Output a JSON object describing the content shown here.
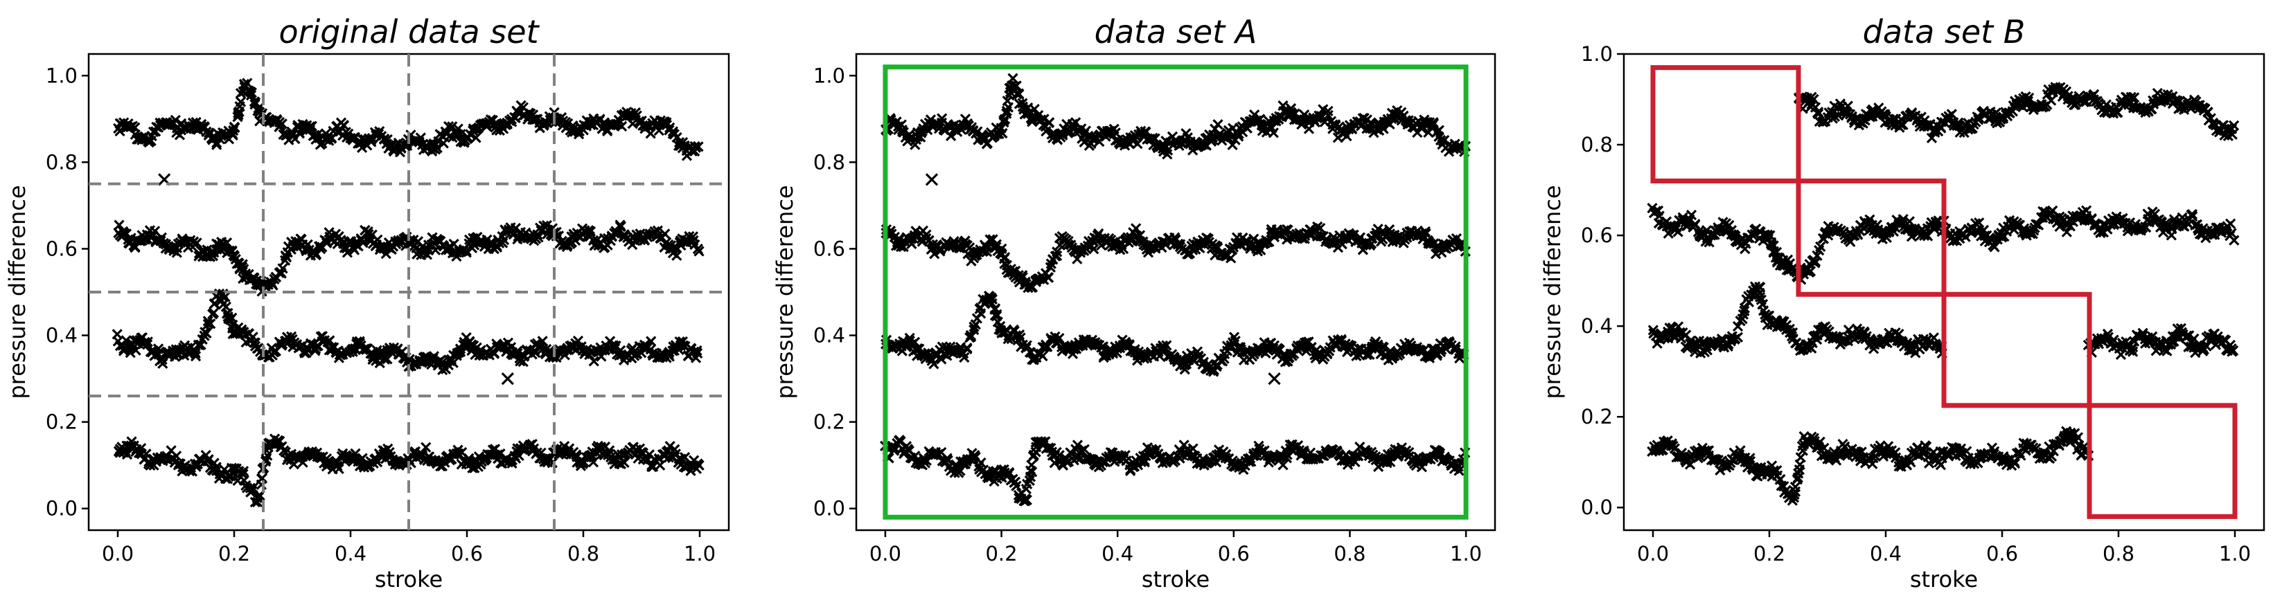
{
  "chart_data": [
    {
      "type": "scatter",
      "title": "original data set",
      "xlabel": "stroke",
      "ylabel": "pressure difference",
      "xlim": [
        -0.05,
        1.05
      ],
      "ylim": [
        -0.05,
        1.05
      ],
      "xticks": [
        "0.0",
        "0.2",
        "0.4",
        "0.6",
        "0.8",
        "1.0"
      ],
      "yticks": [
        "0.0",
        "0.2",
        "0.4",
        "0.6",
        "0.8",
        "1.0"
      ],
      "marker": "x",
      "grid_lines": {
        "vertical": [
          0.25,
          0.5,
          0.75
        ],
        "horizontal": [
          0.26,
          0.5,
          0.75
        ],
        "style": "dashed",
        "color": "#808080"
      },
      "series": [
        {
          "x": [
            0.0,
            0.05,
            0.1,
            0.15,
            0.2,
            0.22,
            0.25,
            0.3,
            0.4,
            0.5,
            0.55,
            0.6,
            0.7,
            0.8,
            0.9,
            0.95,
            1.0
          ],
          "y": [
            0.88,
            0.86,
            0.89,
            0.87,
            0.86,
            0.99,
            0.9,
            0.87,
            0.86,
            0.84,
            0.85,
            0.87,
            0.91,
            0.88,
            0.9,
            0.87,
            0.82
          ]
        },
        {
          "x": [
            0.0,
            0.05,
            0.1,
            0.15,
            0.2,
            0.22,
            0.25,
            0.3,
            0.4,
            0.5,
            0.6,
            0.7,
            0.8,
            0.9,
            1.0
          ],
          "y": [
            0.63,
            0.62,
            0.61,
            0.6,
            0.59,
            0.55,
            0.5,
            0.6,
            0.62,
            0.61,
            0.6,
            0.64,
            0.62,
            0.63,
            0.6
          ]
        },
        {
          "x": [
            0.0,
            0.05,
            0.1,
            0.14,
            0.18,
            0.2,
            0.25,
            0.3,
            0.4,
            0.5,
            0.55,
            0.6,
            0.7,
            0.8,
            0.9,
            1.0
          ],
          "y": [
            0.39,
            0.37,
            0.35,
            0.38,
            0.49,
            0.42,
            0.36,
            0.38,
            0.37,
            0.35,
            0.33,
            0.37,
            0.36,
            0.37,
            0.36,
            0.37
          ]
        },
        {
          "x": [
            0.0,
            0.05,
            0.1,
            0.15,
            0.2,
            0.24,
            0.26,
            0.3,
            0.4,
            0.5,
            0.6,
            0.7,
            0.8,
            0.9,
            1.0
          ],
          "y": [
            0.14,
            0.12,
            0.11,
            0.1,
            0.08,
            0.03,
            0.15,
            0.12,
            0.11,
            0.12,
            0.11,
            0.13,
            0.12,
            0.12,
            0.11
          ]
        }
      ],
      "outliers": [
        {
          "x": 0.08,
          "y": 0.76
        },
        {
          "x": 0.67,
          "y": 0.3
        }
      ]
    },
    {
      "type": "scatter",
      "title": "data set A",
      "xlabel": "stroke",
      "ylabel": "pressure difference",
      "xlim": [
        -0.05,
        1.05
      ],
      "ylim": [
        -0.05,
        1.05
      ],
      "xticks": [
        "0.0",
        "0.2",
        "0.4",
        "0.6",
        "0.8",
        "1.0"
      ],
      "yticks": [
        "0.0",
        "0.2",
        "0.4",
        "0.6",
        "0.8",
        "1.0"
      ],
      "marker": "x",
      "boxes": [
        {
          "x0": 0.0,
          "x1": 1.0,
          "y0": -0.02,
          "y1": 1.02,
          "color": "#1db32d"
        }
      ],
      "series": [
        {
          "x": [
            0.0,
            0.05,
            0.1,
            0.15,
            0.2,
            0.22,
            0.25,
            0.3,
            0.4,
            0.5,
            0.55,
            0.6,
            0.7,
            0.8,
            0.9,
            0.95,
            1.0
          ],
          "y": [
            0.88,
            0.86,
            0.89,
            0.87,
            0.86,
            0.99,
            0.9,
            0.87,
            0.86,
            0.84,
            0.85,
            0.87,
            0.91,
            0.88,
            0.9,
            0.87,
            0.82
          ]
        },
        {
          "x": [
            0.0,
            0.05,
            0.1,
            0.15,
            0.2,
            0.22,
            0.25,
            0.3,
            0.4,
            0.5,
            0.6,
            0.7,
            0.8,
            0.9,
            1.0
          ],
          "y": [
            0.63,
            0.62,
            0.61,
            0.6,
            0.59,
            0.55,
            0.5,
            0.6,
            0.62,
            0.61,
            0.6,
            0.64,
            0.62,
            0.63,
            0.6
          ]
        },
        {
          "x": [
            0.0,
            0.05,
            0.1,
            0.14,
            0.18,
            0.2,
            0.25,
            0.3,
            0.4,
            0.5,
            0.55,
            0.6,
            0.7,
            0.8,
            0.9,
            1.0
          ],
          "y": [
            0.39,
            0.37,
            0.35,
            0.38,
            0.49,
            0.42,
            0.36,
            0.38,
            0.37,
            0.35,
            0.33,
            0.37,
            0.36,
            0.37,
            0.36,
            0.37
          ]
        },
        {
          "x": [
            0.0,
            0.05,
            0.1,
            0.15,
            0.2,
            0.24,
            0.26,
            0.3,
            0.4,
            0.5,
            0.6,
            0.7,
            0.8,
            0.9,
            1.0
          ],
          "y": [
            0.14,
            0.12,
            0.11,
            0.1,
            0.08,
            0.03,
            0.15,
            0.12,
            0.11,
            0.12,
            0.11,
            0.13,
            0.12,
            0.12,
            0.11
          ]
        }
      ],
      "outliers": [
        {
          "x": 0.08,
          "y": 0.76
        },
        {
          "x": 0.67,
          "y": 0.3
        }
      ]
    },
    {
      "type": "scatter",
      "title": "data set B",
      "xlabel": "stroke",
      "ylabel": "pressure difference",
      "xlim": [
        -0.05,
        1.05
      ],
      "ylim": [
        -0.05,
        1.0
      ],
      "xticks": [
        "0.0",
        "0.2",
        "0.4",
        "0.6",
        "0.8",
        "1.0"
      ],
      "yticks": [
        "0.0",
        "0.2",
        "0.4",
        "0.6",
        "0.8",
        "1.0"
      ],
      "marker": "x",
      "boxes": [
        {
          "x0": 0.0,
          "x1": 0.25,
          "y0": 0.72,
          "y1": 0.97,
          "color": "#cc2030"
        },
        {
          "x0": 0.25,
          "x1": 0.5,
          "y0": 0.47,
          "y1": 0.72,
          "color": "#cc2030"
        },
        {
          "x0": 0.5,
          "x1": 0.75,
          "y0": 0.225,
          "y1": 0.47,
          "color": "#cc2030"
        },
        {
          "x0": 0.75,
          "x1": 1.0,
          "y0": -0.02,
          "y1": 0.225,
          "color": "#cc2030"
        }
      ],
      "series": [
        {
          "x": [
            0.25,
            0.3,
            0.4,
            0.5,
            0.55,
            0.6,
            0.7,
            0.8,
            0.9,
            0.95,
            1.0
          ],
          "y": [
            0.89,
            0.87,
            0.86,
            0.84,
            0.85,
            0.87,
            0.91,
            0.88,
            0.9,
            0.87,
            0.82
          ]
        },
        {
          "x": [
            0.0,
            0.05,
            0.1,
            0.15,
            0.2,
            0.22,
            0.25,
            0.3,
            0.4,
            0.5,
            0.6,
            0.7,
            0.8,
            0.9,
            1.0
          ],
          "y": [
            0.64,
            0.62,
            0.61,
            0.6,
            0.59,
            0.55,
            0.5,
            0.6,
            0.62,
            0.61,
            0.6,
            0.64,
            0.62,
            0.63,
            0.6
          ]
        },
        {
          "x": [
            0.0,
            0.05,
            0.1,
            0.14,
            0.18,
            0.2,
            0.25,
            0.3,
            0.4,
            0.5,
            0.75,
            0.8,
            0.9,
            1.0
          ],
          "y": [
            0.39,
            0.37,
            0.35,
            0.38,
            0.49,
            0.42,
            0.36,
            0.38,
            0.37,
            0.35,
            0.37,
            0.36,
            0.37,
            0.36
          ]
        },
        {
          "x": [
            0.0,
            0.05,
            0.1,
            0.15,
            0.2,
            0.24,
            0.26,
            0.3,
            0.4,
            0.5,
            0.6,
            0.7,
            0.72,
            0.75
          ],
          "y": [
            0.14,
            0.12,
            0.11,
            0.1,
            0.08,
            0.02,
            0.15,
            0.12,
            0.11,
            0.12,
            0.11,
            0.13,
            0.16,
            0.12
          ]
        }
      ],
      "outliers": []
    }
  ]
}
